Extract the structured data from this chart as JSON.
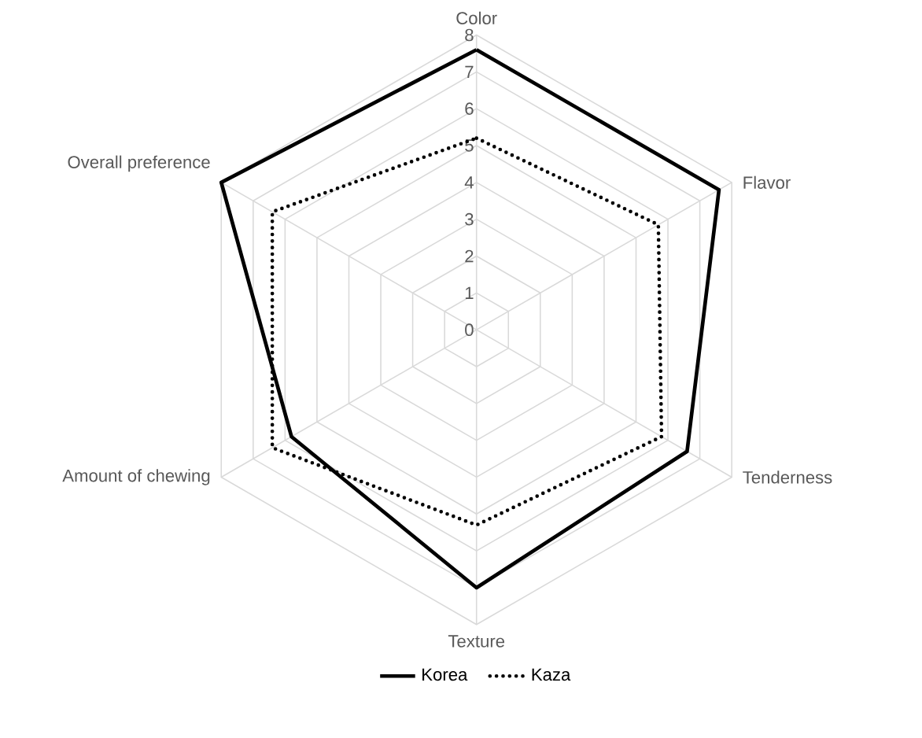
{
  "chart_data": {
    "type": "radar",
    "categories": [
      "Color",
      "Flavor",
      "Tenderness",
      "Texture",
      "Amount of chewing",
      "Overall preference"
    ],
    "series": [
      {
        "name": "Korea",
        "color": "#000000",
        "line_style": "solid",
        "values": [
          7.6,
          7.6,
          6.6,
          7.0,
          5.8,
          8.0
        ]
      },
      {
        "name": "Kaza",
        "color": "#000000",
        "line_style": "dotted",
        "values": [
          5.2,
          5.7,
          5.8,
          5.3,
          6.4,
          6.4
        ]
      }
    ],
    "ylim": [
      0,
      8
    ],
    "yticks": [
      0,
      1,
      2,
      3,
      4,
      5,
      6,
      7,
      8
    ],
    "grid": true,
    "legend": "bottom",
    "marker": "none"
  }
}
